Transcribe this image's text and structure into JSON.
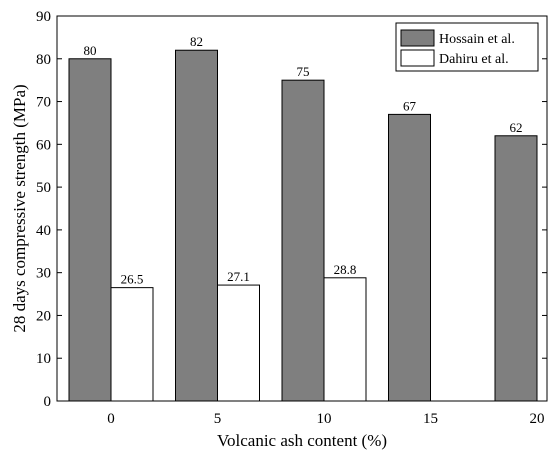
{
  "chart_data": {
    "type": "bar",
    "categories": [
      "0",
      "5",
      "10",
      "15",
      "20"
    ],
    "xlabel": "Volcanic ash content (%)",
    "ylabel": "28 days compressive strength (MPa)",
    "ylim": [
      0,
      90
    ],
    "yticks": [
      "0",
      "10",
      "20",
      "30",
      "40",
      "50",
      "60",
      "70",
      "80",
      "90"
    ],
    "grid": false,
    "legend_position": "top-right",
    "series": [
      {
        "name": "Hossain et al.",
        "color": "#7f7f7f",
        "values": [
          80,
          82,
          75,
          67,
          62
        ],
        "labels": [
          "80",
          "82",
          "75",
          "67",
          "62"
        ]
      },
      {
        "name": "Dahiru et al.",
        "color": "#ffffff",
        "values": [
          26.5,
          27.1,
          28.8,
          null,
          null
        ],
        "labels": [
          "26.5",
          "27.1",
          "28.8",
          null,
          null
        ]
      }
    ]
  }
}
